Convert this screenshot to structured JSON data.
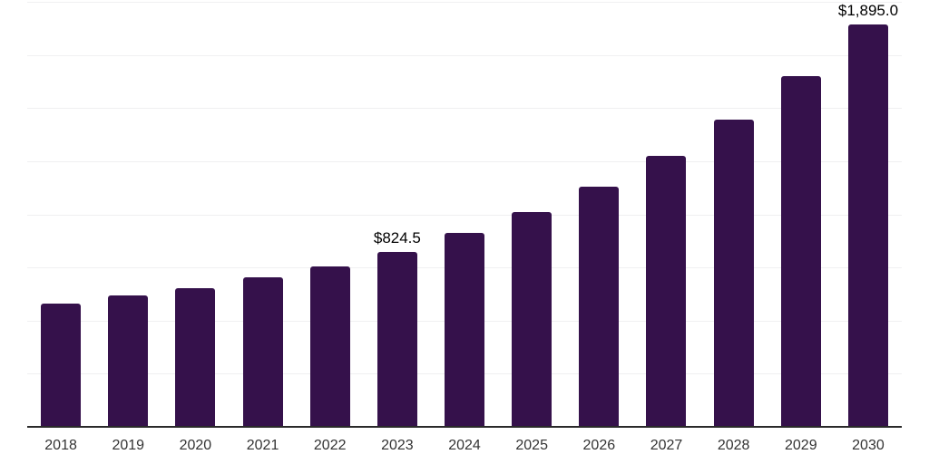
{
  "chart_data": {
    "type": "bar",
    "title": "",
    "xlabel": "",
    "ylabel": "",
    "categories": [
      "2018",
      "2019",
      "2020",
      "2021",
      "2022",
      "2023",
      "2024",
      "2025",
      "2026",
      "2027",
      "2028",
      "2029",
      "2030"
    ],
    "values": [
      582,
      618,
      653,
      704,
      755,
      824.5,
      911,
      1010,
      1130,
      1276,
      1446,
      1649,
      1895
    ],
    "value_labels": {
      "2023": "$824.5",
      "2030": "$1,895.0"
    },
    "ylim": [
      0,
      2000
    ],
    "gridline_interval": 250,
    "grid": true,
    "legend": false,
    "y_tick_labels_visible": false
  },
  "colors": {
    "bar": "#35114b",
    "gridline": "#f0f0f1",
    "axis_line": "#2a2a2a",
    "x_tick_label": "#333333",
    "value_label": "#000000",
    "background": "#ffffff"
  }
}
